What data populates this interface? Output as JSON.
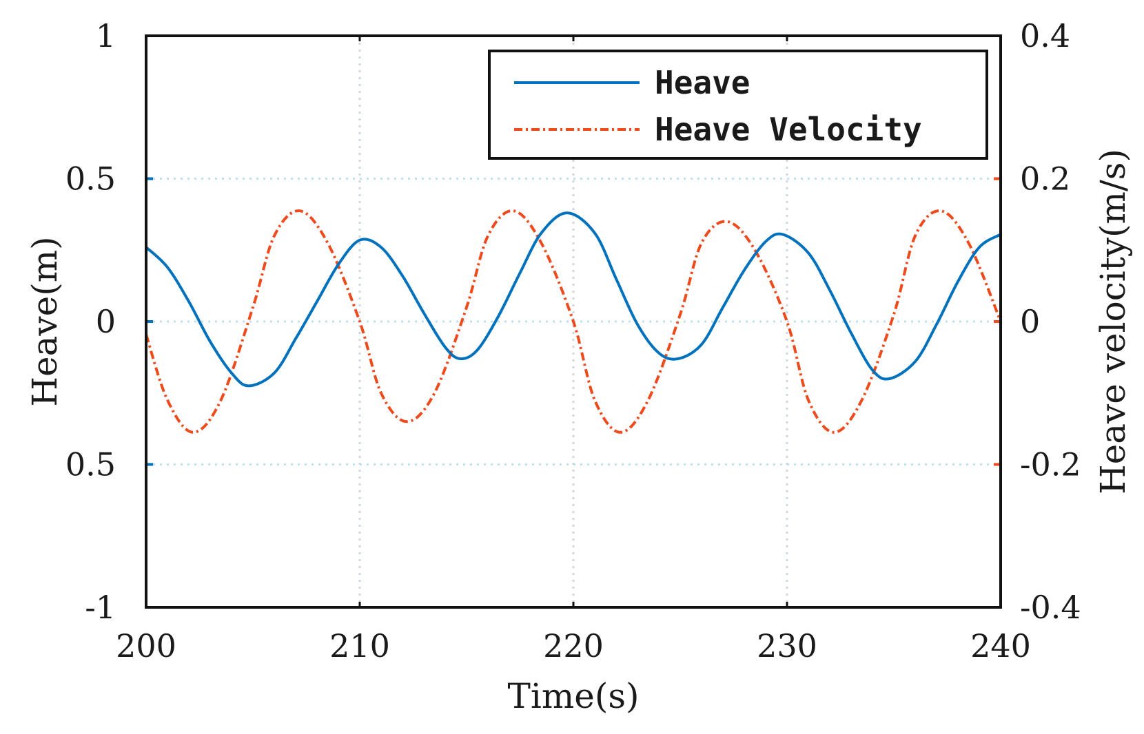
{
  "chart_data": {
    "type": "line",
    "xlabel": "Time(s)",
    "ylabel_left": "Heave(m)",
    "ylabel_right": "Heave velocity(m/s)",
    "xlim": [
      200,
      240
    ],
    "ylim_left": [
      -1,
      1
    ],
    "ylim_right": [
      -0.4,
      0.4
    ],
    "grid": true,
    "legend_position": "top-right",
    "x_ticks": [
      "200",
      "210",
      "220",
      "230",
      "240"
    ],
    "y_left_ticks": [
      "1",
      "0.5",
      "0",
      "0.5",
      "-1"
    ],
    "y_right_ticks": [
      "0.4",
      "0.2",
      "0",
      "-0.2",
      "-0.4"
    ],
    "colors": {
      "heave": "#0072BD",
      "velocity": "#EE4A1C"
    },
    "series": [
      {
        "name": "Heave",
        "axis": "left",
        "style": "solid",
        "x": [
          200,
          201,
          202,
          203,
          204,
          204.8,
          206,
          207,
          208,
          209,
          210,
          211,
          212,
          213,
          214,
          214.7,
          215.5,
          216.5,
          217.5,
          218.5,
          219.7,
          221,
          222,
          223,
          224,
          224.9,
          226,
          227,
          228,
          229,
          229.8,
          231,
          232,
          233,
          234,
          234.8,
          236,
          237,
          238,
          239,
          240
        ],
        "values": [
          0.26,
          0.19,
          0.07,
          -0.07,
          -0.18,
          -0.225,
          -0.18,
          -0.06,
          0.07,
          0.2,
          0.285,
          0.26,
          0.16,
          0.03,
          -0.09,
          -0.13,
          -0.1,
          0.02,
          0.17,
          0.31,
          0.38,
          0.31,
          0.15,
          -0.01,
          -0.11,
          -0.13,
          -0.08,
          0.05,
          0.18,
          0.28,
          0.305,
          0.24,
          0.11,
          -0.04,
          -0.17,
          -0.2,
          -0.14,
          -0.01,
          0.14,
          0.26,
          0.305
        ]
      },
      {
        "name": "Heave Velocity",
        "axis": "right",
        "style": "dash-dot",
        "x": [
          200,
          201,
          202.2,
          203.5,
          205,
          206,
          207.2,
          208.5,
          210,
          211,
          212.2,
          213.5,
          215,
          216,
          217.2,
          218.5,
          220,
          221,
          222.2,
          223.5,
          225,
          226,
          227.2,
          228.5,
          230,
          231,
          232.2,
          233.5,
          235,
          236,
          237.2,
          238.5,
          240
        ],
        "values": [
          -0.018,
          -0.11,
          -0.155,
          -0.11,
          0.02,
          0.12,
          0.155,
          0.11,
          0.0,
          -0.1,
          -0.14,
          -0.1,
          0.02,
          0.12,
          0.155,
          0.11,
          0.0,
          -0.11,
          -0.155,
          -0.11,
          0.01,
          0.11,
          0.14,
          0.1,
          0.0,
          -0.11,
          -0.155,
          -0.11,
          0.01,
          0.12,
          0.155,
          0.11,
          0.0
        ]
      }
    ]
  }
}
